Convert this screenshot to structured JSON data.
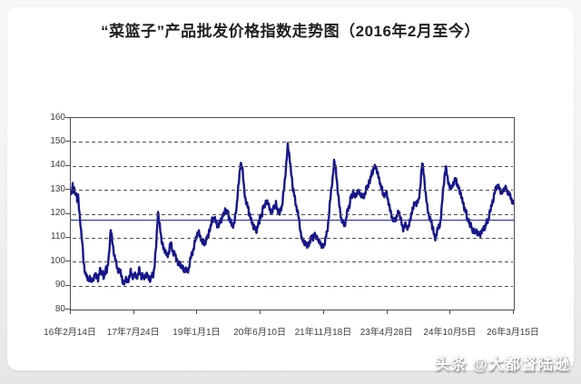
{
  "watermark": {
    "text": "头条 @大都督陆逊"
  },
  "chart_data": {
    "type": "line",
    "title": "“菜篮子”产品批发价格指数走势图（2016年2月至今）",
    "series_name": "菜篮子产品批发价格指数",
    "line_color": "#16168b",
    "baseline_color": "#2626a0",
    "baseline_value": 117.5,
    "grid": "horizontal dashed",
    "legend": "none",
    "ylim": [
      80,
      160
    ],
    "y_ticks": [
      80,
      90,
      100,
      110,
      120,
      130,
      140,
      150,
      160
    ],
    "x_start_date": "16年2月14日",
    "x_end_date": "26年3月15日",
    "x_span_days": 3682,
    "x_tick_labels": [
      "16年2月14日",
      "17年7月24日",
      "19年1月1日",
      "20年6月10日",
      "21年11月18日",
      "23年4月28日",
      "24年10月5日",
      "26年3月15日"
    ],
    "points": [
      [
        0,
        127
      ],
      [
        8,
        130
      ],
      [
        15,
        132
      ],
      [
        23,
        129
      ],
      [
        30,
        131
      ],
      [
        38,
        127
      ],
      [
        45,
        129
      ],
      [
        53,
        125
      ],
      [
        60,
        128
      ],
      [
        75,
        118
      ],
      [
        91,
        110
      ],
      [
        106,
        101
      ],
      [
        121,
        95
      ],
      [
        136,
        92.5
      ],
      [
        158,
        93.5
      ],
      [
        181,
        92
      ],
      [
        204,
        95
      ],
      [
        226,
        93
      ],
      [
        249,
        96.5
      ],
      [
        272,
        94
      ],
      [
        294,
        97
      ],
      [
        302,
        96
      ],
      [
        317,
        103
      ],
      [
        332,
        113.5
      ],
      [
        347,
        108
      ],
      [
        362,
        102
      ],
      [
        392,
        97
      ],
      [
        422,
        94
      ],
      [
        438,
        91.5
      ],
      [
        460,
        93
      ],
      [
        475,
        91.3
      ],
      [
        498,
        96
      ],
      [
        513,
        94
      ],
      [
        528,
        94.5
      ],
      [
        543,
        93
      ],
      [
        566,
        96.5
      ],
      [
        589,
        94
      ],
      [
        611,
        93.5
      ],
      [
        634,
        95
      ],
      [
        656,
        92.5
      ],
      [
        679,
        94
      ],
      [
        694,
        97
      ],
      [
        709,
        106
      ],
      [
        724,
        121.5
      ],
      [
        739,
        115
      ],
      [
        755,
        108
      ],
      [
        785,
        104
      ],
      [
        800,
        102.8
      ],
      [
        815,
        104
      ],
      [
        830,
        107.5
      ],
      [
        845,
        105
      ],
      [
        868,
        103
      ],
      [
        890,
        100
      ],
      [
        913,
        98.5
      ],
      [
        936,
        97
      ],
      [
        951,
        95.9
      ],
      [
        966,
        96.5
      ],
      [
        981,
        97.5
      ],
      [
        1011,
        104
      ],
      [
        1034,
        109
      ],
      [
        1049,
        111.5
      ],
      [
        1064,
        112.2
      ],
      [
        1086,
        109
      ],
      [
        1109,
        107.8
      ],
      [
        1132,
        110
      ],
      [
        1154,
        114
      ],
      [
        1177,
        117.5
      ],
      [
        1192,
        118.5
      ],
      [
        1207,
        116.5
      ],
      [
        1222,
        114.5
      ],
      [
        1237,
        116
      ],
      [
        1252,
        118
      ],
      [
        1268,
        120.5
      ],
      [
        1290,
        121.3
      ],
      [
        1313,
        119
      ],
      [
        1328,
        116.5
      ],
      [
        1343,
        114.8
      ],
      [
        1358,
        116
      ],
      [
        1381,
        124
      ],
      [
        1396,
        133
      ],
      [
        1411,
        142.2
      ],
      [
        1426,
        138
      ],
      [
        1441,
        130
      ],
      [
        1456,
        125.5
      ],
      [
        1479,
        121
      ],
      [
        1501,
        117
      ],
      [
        1524,
        114
      ],
      [
        1547,
        113
      ],
      [
        1569,
        117
      ],
      [
        1592,
        121
      ],
      [
        1615,
        124
      ],
      [
        1637,
        124.8
      ],
      [
        1652,
        122.5
      ],
      [
        1667,
        120
      ],
      [
        1683,
        122
      ],
      [
        1705,
        124.5
      ],
      [
        1720,
        122
      ],
      [
        1735,
        119.5
      ],
      [
        1758,
        124
      ],
      [
        1773,
        131
      ],
      [
        1788,
        139
      ],
      [
        1803,
        148.7
      ],
      [
        1818,
        144
      ],
      [
        1833,
        136
      ],
      [
        1849,
        129
      ],
      [
        1864,
        126.8
      ],
      [
        1879,
        122
      ],
      [
        1894,
        118
      ],
      [
        1909,
        113
      ],
      [
        1924,
        109
      ],
      [
        1947,
        107.5
      ],
      [
        1969,
        107
      ],
      [
        1984,
        108.5
      ],
      [
        2007,
        110
      ],
      [
        2030,
        111.6
      ],
      [
        2052,
        110
      ],
      [
        2067,
        108
      ],
      [
        2090,
        106.3
      ],
      [
        2105,
        107
      ],
      [
        2128,
        112
      ],
      [
        2143,
        118
      ],
      [
        2158,
        126
      ],
      [
        2173,
        134
      ],
      [
        2188,
        141.8
      ],
      [
        2203,
        138
      ],
      [
        2218,
        130
      ],
      [
        2233,
        123
      ],
      [
        2248,
        118
      ],
      [
        2271,
        115.2
      ],
      [
        2286,
        117
      ],
      [
        2301,
        121
      ],
      [
        2324,
        126
      ],
      [
        2346,
        128.8
      ],
      [
        2369,
        127.5
      ],
      [
        2384,
        129.5
      ],
      [
        2407,
        128
      ],
      [
        2422,
        126.5
      ],
      [
        2437,
        128
      ],
      [
        2460,
        131
      ],
      [
        2482,
        134
      ],
      [
        2505,
        137
      ],
      [
        2520,
        139.3
      ],
      [
        2535,
        139.8
      ],
      [
        2550,
        137
      ],
      [
        2565,
        133
      ],
      [
        2581,
        131.8
      ],
      [
        2596,
        129
      ],
      [
        2611,
        127.2
      ],
      [
        2626,
        128.5
      ],
      [
        2641,
        125
      ],
      [
        2656,
        121
      ],
      [
        2671,
        118.2
      ],
      [
        2686,
        116.8
      ],
      [
        2701,
        118
      ],
      [
        2716,
        120.8
      ],
      [
        2732,
        119
      ],
      [
        2747,
        116
      ],
      [
        2762,
        114.3
      ],
      [
        2777,
        115.5
      ],
      [
        2792,
        113.9
      ],
      [
        2807,
        114.8
      ],
      [
        2829,
        119
      ],
      [
        2844,
        123
      ],
      [
        2860,
        125.5
      ],
      [
        2875,
        123.5
      ],
      [
        2890,
        125
      ],
      [
        2905,
        132
      ],
      [
        2912,
        137
      ],
      [
        2920,
        141.2
      ],
      [
        2935,
        136
      ],
      [
        2950,
        128
      ],
      [
        2965,
        122
      ],
      [
        2980,
        118.5
      ],
      [
        2995,
        116.5
      ],
      [
        3011,
        113
      ],
      [
        3026,
        110.5
      ],
      [
        3041,
        111.5
      ],
      [
        3056,
        114
      ],
      [
        3071,
        116.5
      ],
      [
        3078,
        120
      ],
      [
        3094,
        130
      ],
      [
        3116,
        139.5
      ],
      [
        3131,
        135
      ],
      [
        3154,
        130.7
      ],
      [
        3176,
        133
      ],
      [
        3199,
        135
      ],
      [
        3222,
        131
      ],
      [
        3244,
        128
      ],
      [
        3267,
        123
      ],
      [
        3290,
        119.5
      ],
      [
        3312,
        116
      ],
      [
        3335,
        113.5
      ],
      [
        3357,
        112.5
      ],
      [
        3380,
        112
      ],
      [
        3403,
        111.3
      ],
      [
        3425,
        113
      ],
      [
        3448,
        115
      ],
      [
        3471,
        117.5
      ],
      [
        3493,
        122
      ],
      [
        3516,
        127
      ],
      [
        3531,
        130.5
      ],
      [
        3546,
        131.5
      ],
      [
        3561,
        130.8
      ],
      [
        3576,
        129.5
      ],
      [
        3591,
        128.6
      ],
      [
        3607,
        130.2
      ],
      [
        3622,
        130.6
      ],
      [
        3637,
        129
      ],
      [
        3652,
        127
      ],
      [
        3667,
        125.5
      ],
      [
        3682,
        124.5
      ]
    ]
  }
}
